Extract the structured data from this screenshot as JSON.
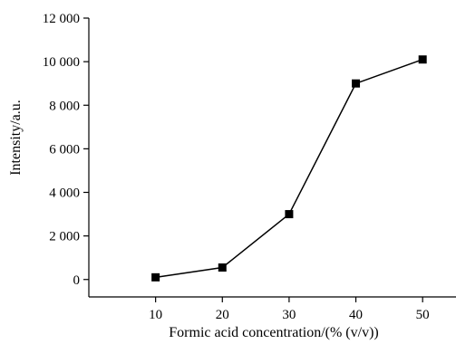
{
  "chart_data": {
    "type": "line",
    "xlabel": "Formic acid concentration/(% (v/v))",
    "ylabel": "Intensity/a.u.",
    "xlim": [
      0,
      55
    ],
    "ylim": [
      -800,
      12000
    ],
    "x_ticks": [
      10,
      20,
      30,
      40,
      50
    ],
    "x_tick_labels": [
      "10",
      "20",
      "30",
      "40",
      "50"
    ],
    "y_ticks": [
      0,
      2000,
      4000,
      6000,
      8000,
      10000,
      12000
    ],
    "y_tick_labels": [
      "0",
      "2 000",
      "4 000",
      "6 000",
      "8 000",
      "10 000",
      "12 000"
    ],
    "grid": false,
    "marker": "square",
    "series": [
      {
        "x": [
          10,
          20,
          30,
          40,
          50
        ],
        "values": [
          100,
          550,
          3000,
          9000,
          10100
        ],
        "color": "#000000"
      }
    ]
  }
}
